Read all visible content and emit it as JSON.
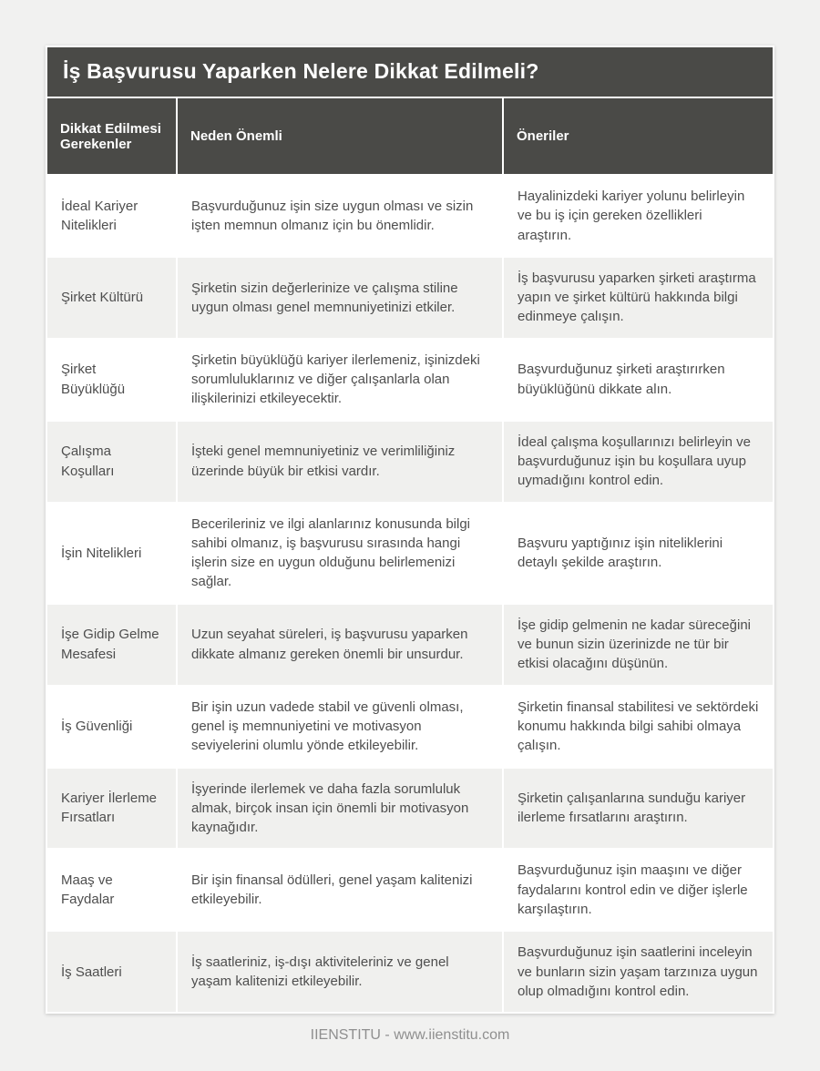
{
  "page": {
    "footer_text": "IIENSTITU - www.iienstitu.com",
    "colors": {
      "page_background": "#f1f1f0",
      "card_background": "#ffffff",
      "header_background": "#4a4a47",
      "stripe_background": "#f0f0ee",
      "header_text": "#ffffff",
      "body_text": "#4e4e4e",
      "footer_text": "#8f8f8f"
    }
  },
  "table": {
    "title": "İş Başvurusu Yaparken Nelere Dikkat Edilmeli?",
    "columns": [
      "Dikkat Edilmesi Gerekenler",
      "Neden Önemli",
      "Öneriler"
    ],
    "rows": [
      {
        "topic": "İdeal Kariyer Nitelikleri",
        "why": "Başvurduğunuz işin size uygun olması ve sizin işten memnun olmanız için bu önemlidir.",
        "suggestion": "Hayalinizdeki kariyer yolunu belirleyin ve bu iş için gereken özellikleri araştırın."
      },
      {
        "topic": "Şirket Kültürü",
        "why": "Şirketin sizin değerlerinize ve çalışma stiline uygun olması genel memnuniyetinizi etkiler.",
        "suggestion": "İş başvurusu yaparken şirketi araştırma yapın ve şirket kültürü hakkında bilgi edinmeye çalışın."
      },
      {
        "topic": "Şirket Büyüklüğü",
        "why": "Şirketin büyüklüğü kariyer ilerlemeniz, işinizdeki sorumluluklarınız ve diğer çalışanlarla olan ilişkilerinizi etkileyecektir.",
        "suggestion": "Başvurduğunuz şirketi araştırırken büyüklüğünü dikkate alın."
      },
      {
        "topic": "Çalışma Koşulları",
        "why": "İşteki genel memnuniyetiniz ve verimliliğiniz üzerinde büyük bir etkisi vardır.",
        "suggestion": "İdeal çalışma koşullarınızı belirleyin ve başvurduğunuz işin bu koşullara uyup uymadığını kontrol edin."
      },
      {
        "topic": "İşin Nitelikleri",
        "why": "Becerileriniz ve ilgi alanlarınız konusunda bilgi sahibi olmanız, iş başvurusu sırasında hangi işlerin size en uygun olduğunu belirlemenizi sağlar.",
        "suggestion": "Başvuru yaptığınız işin niteliklerini detaylı şekilde araştırın."
      },
      {
        "topic": "İşe Gidip Gelme Mesafesi",
        "why": "Uzun seyahat süreleri, iş başvurusu yaparken dikkate almanız gereken önemli bir unsurdur.",
        "suggestion": "İşe gidip gelmenin ne kadar süreceğini ve bunun sizin üzerinizde ne tür bir etkisi olacağını düşünün."
      },
      {
        "topic": "İş Güvenliği",
        "why": "Bir işin uzun vadede stabil ve güvenli olması, genel iş memnuniyetini ve motivasyon seviyelerini olumlu yönde etkileyebilir.",
        "suggestion": "Şirketin finansal stabilitesi ve sektördeki konumu hakkında bilgi sahibi olmaya çalışın."
      },
      {
        "topic": "Kariyer İlerleme Fırsatları",
        "why": "İşyerinde ilerlemek ve daha fazla sorumluluk almak, birçok insan için önemli bir motivasyon kaynağıdır.",
        "suggestion": "Şirketin çalışanlarına sunduğu kariyer ilerleme fırsatlarını araştırın."
      },
      {
        "topic": "Maaş ve Faydalar",
        "why": "Bir işin finansal ödülleri, genel yaşam kalitenizi etkileyebilir.",
        "suggestion": "Başvurduğunuz işin maaşını ve diğer faydalarını kontrol edin ve diğer işlerle karşılaştırın."
      },
      {
        "topic": "İş Saatleri",
        "why": "İş saatleriniz, iş-dışı aktiviteleriniz ve genel yaşam kalitenizi etkileyebilir.",
        "suggestion": "Başvurduğunuz işin saatlerini inceleyin ve bunların sizin yaşam tarzınıza uygun olup olmadığını kontrol edin."
      }
    ]
  }
}
